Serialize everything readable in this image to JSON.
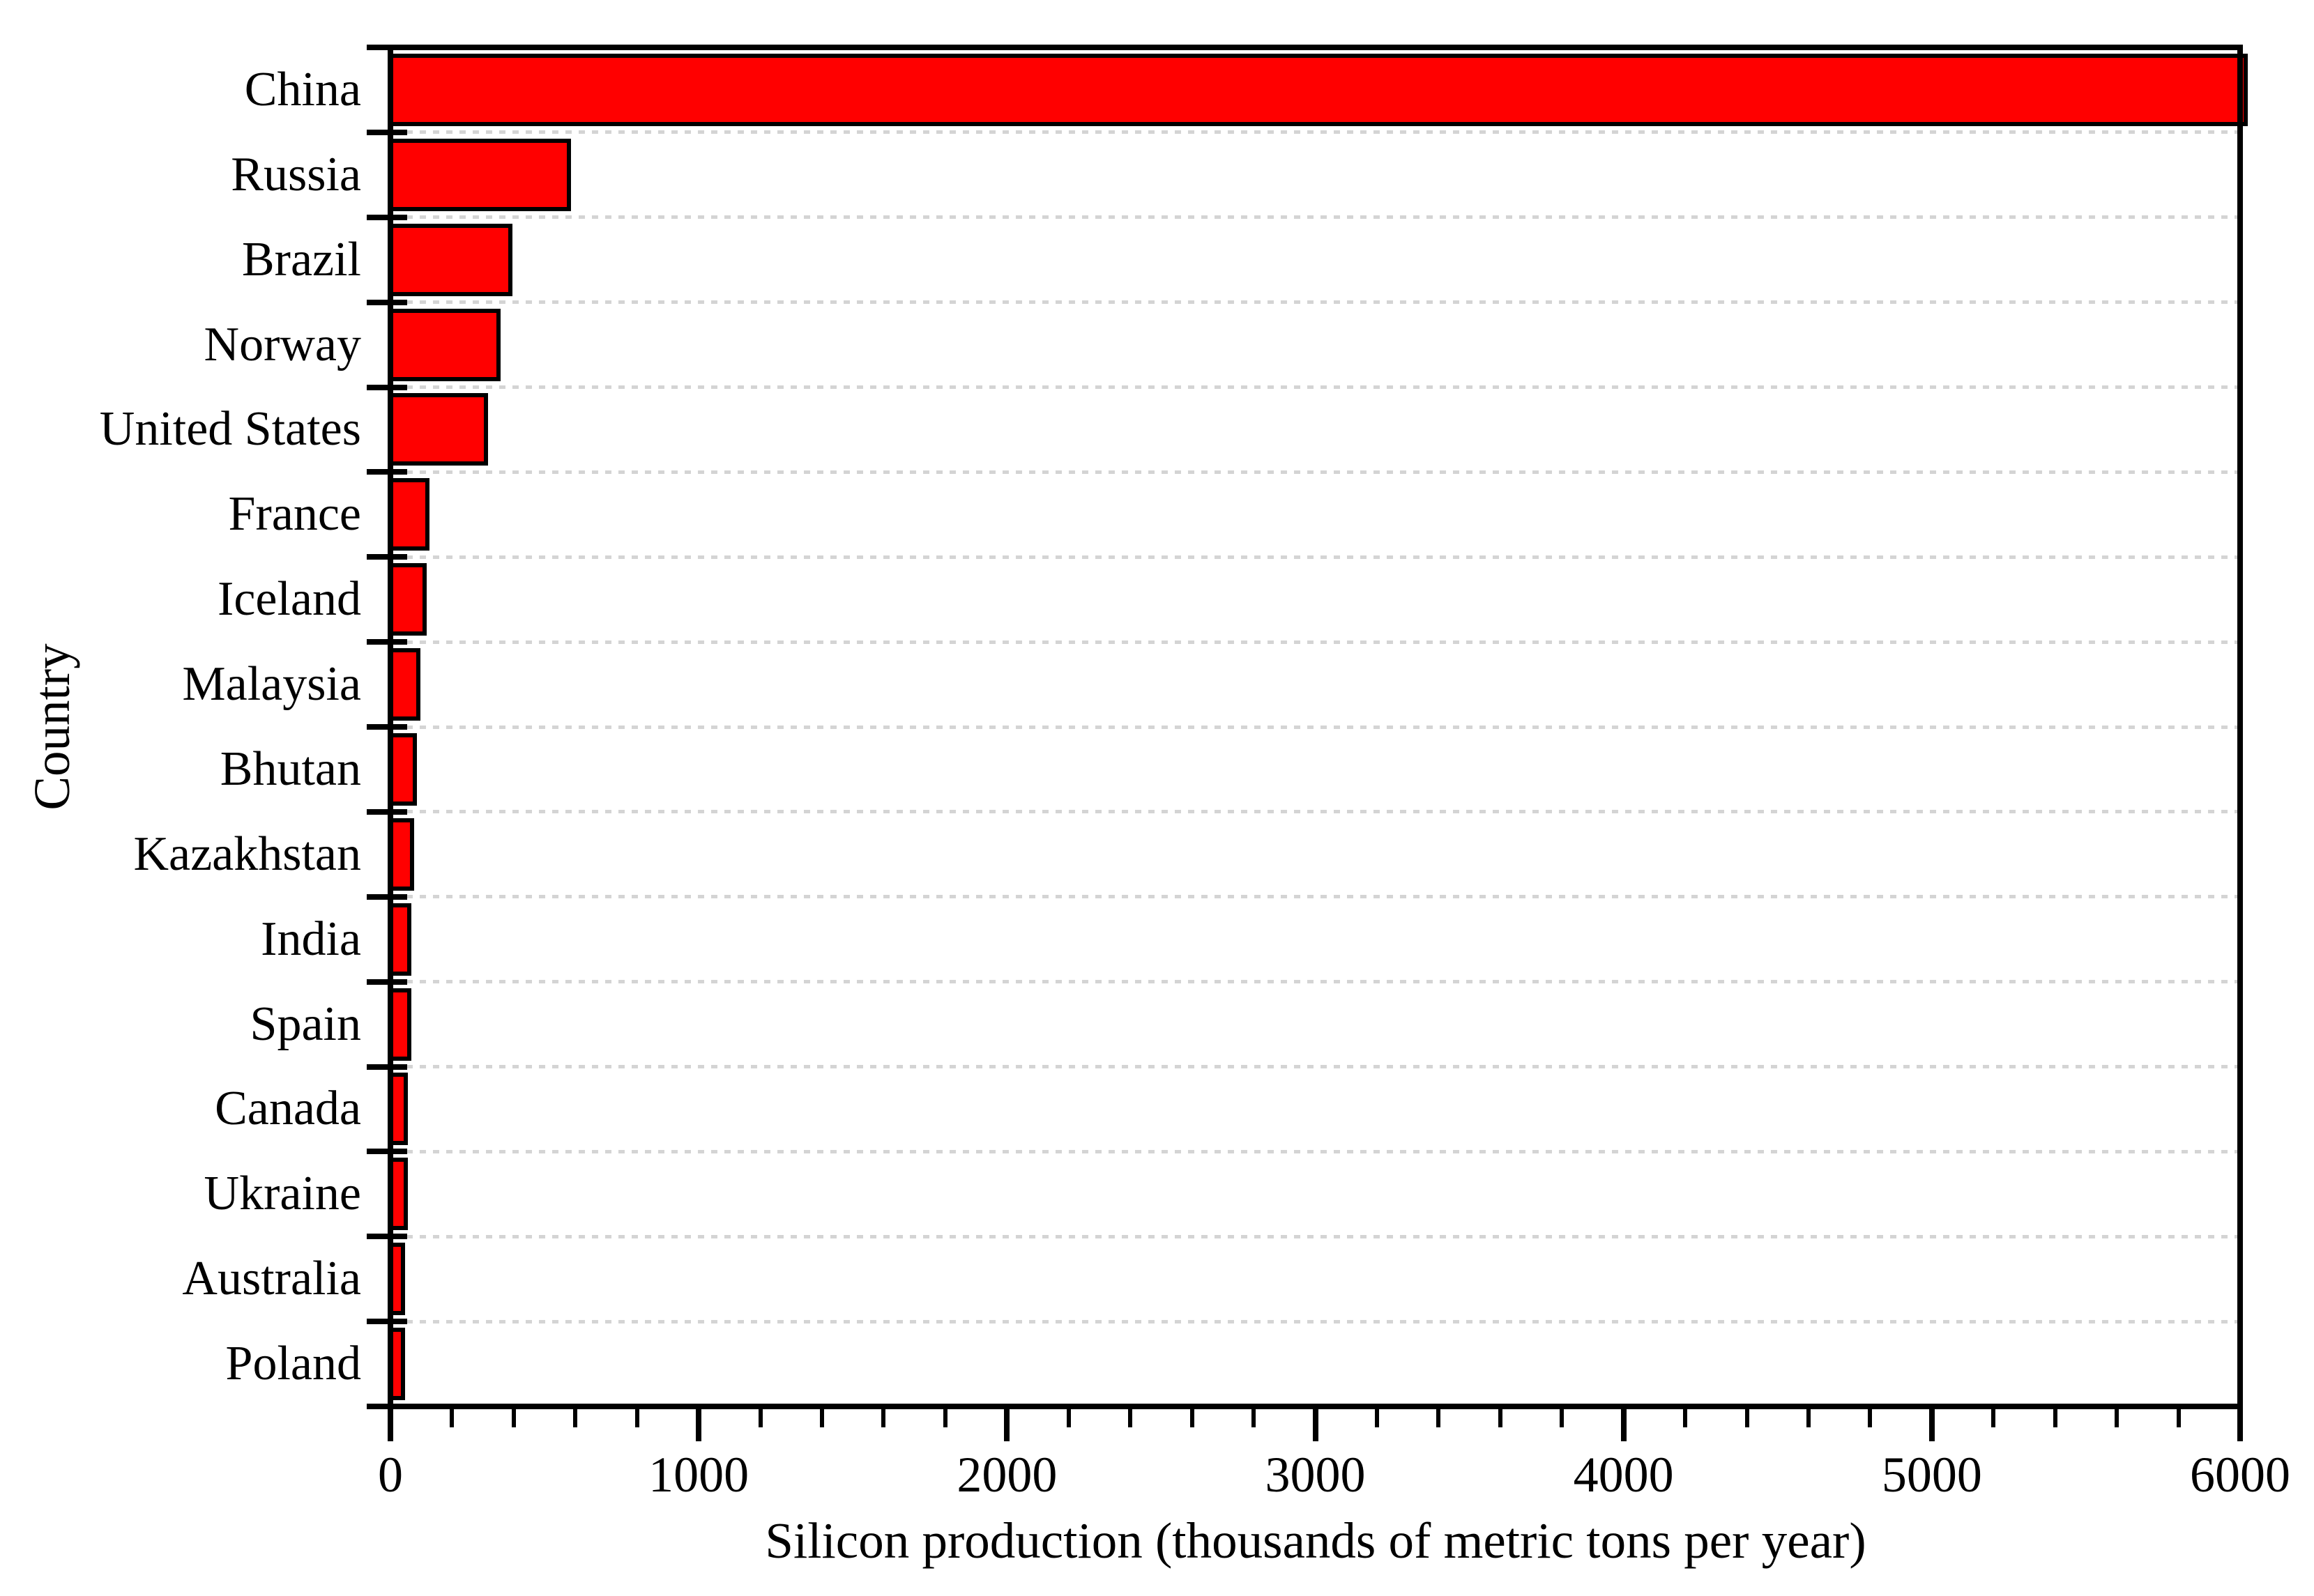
{
  "figure": {
    "description": "Horizontal bar chart of silicon production by country",
    "x_axis_title": "Silicon production (thousands of metric tons per year)",
    "y_axis_title": "Country"
  },
  "chart_data": {
    "type": "bar",
    "orientation": "horizontal",
    "categories": [
      "China",
      "Russia",
      "Brazil",
      "Norway",
      "United States",
      "France",
      "Iceland",
      "Malaysia",
      "Bhutan",
      "Kazakhstan",
      "India",
      "Spain",
      "Canada",
      "Ukraine",
      "Australia",
      "Poland"
    ],
    "values": [
      6000,
      580,
      390,
      350,
      310,
      120,
      110,
      90,
      80,
      70,
      60,
      60,
      50,
      50,
      40,
      40
    ],
    "title": "",
    "xlabel": "Silicon production (thousands of metric tons per year)",
    "ylabel": "Country",
    "xlim": [
      0,
      6000
    ],
    "x_major_ticks": [
      0,
      1000,
      2000,
      3000,
      4000,
      5000,
      6000
    ],
    "x_minor_tick_interval": 200,
    "grid": "horizontal dashed gridlines at category boundaries",
    "legend": "none",
    "bar_color": "#ff0000",
    "bar_outline_color": "#000000",
    "gridline_color": "#d4d4d4",
    "axis_color": "#000000",
    "background_color": "#ffffff",
    "text_color": "#000000"
  }
}
